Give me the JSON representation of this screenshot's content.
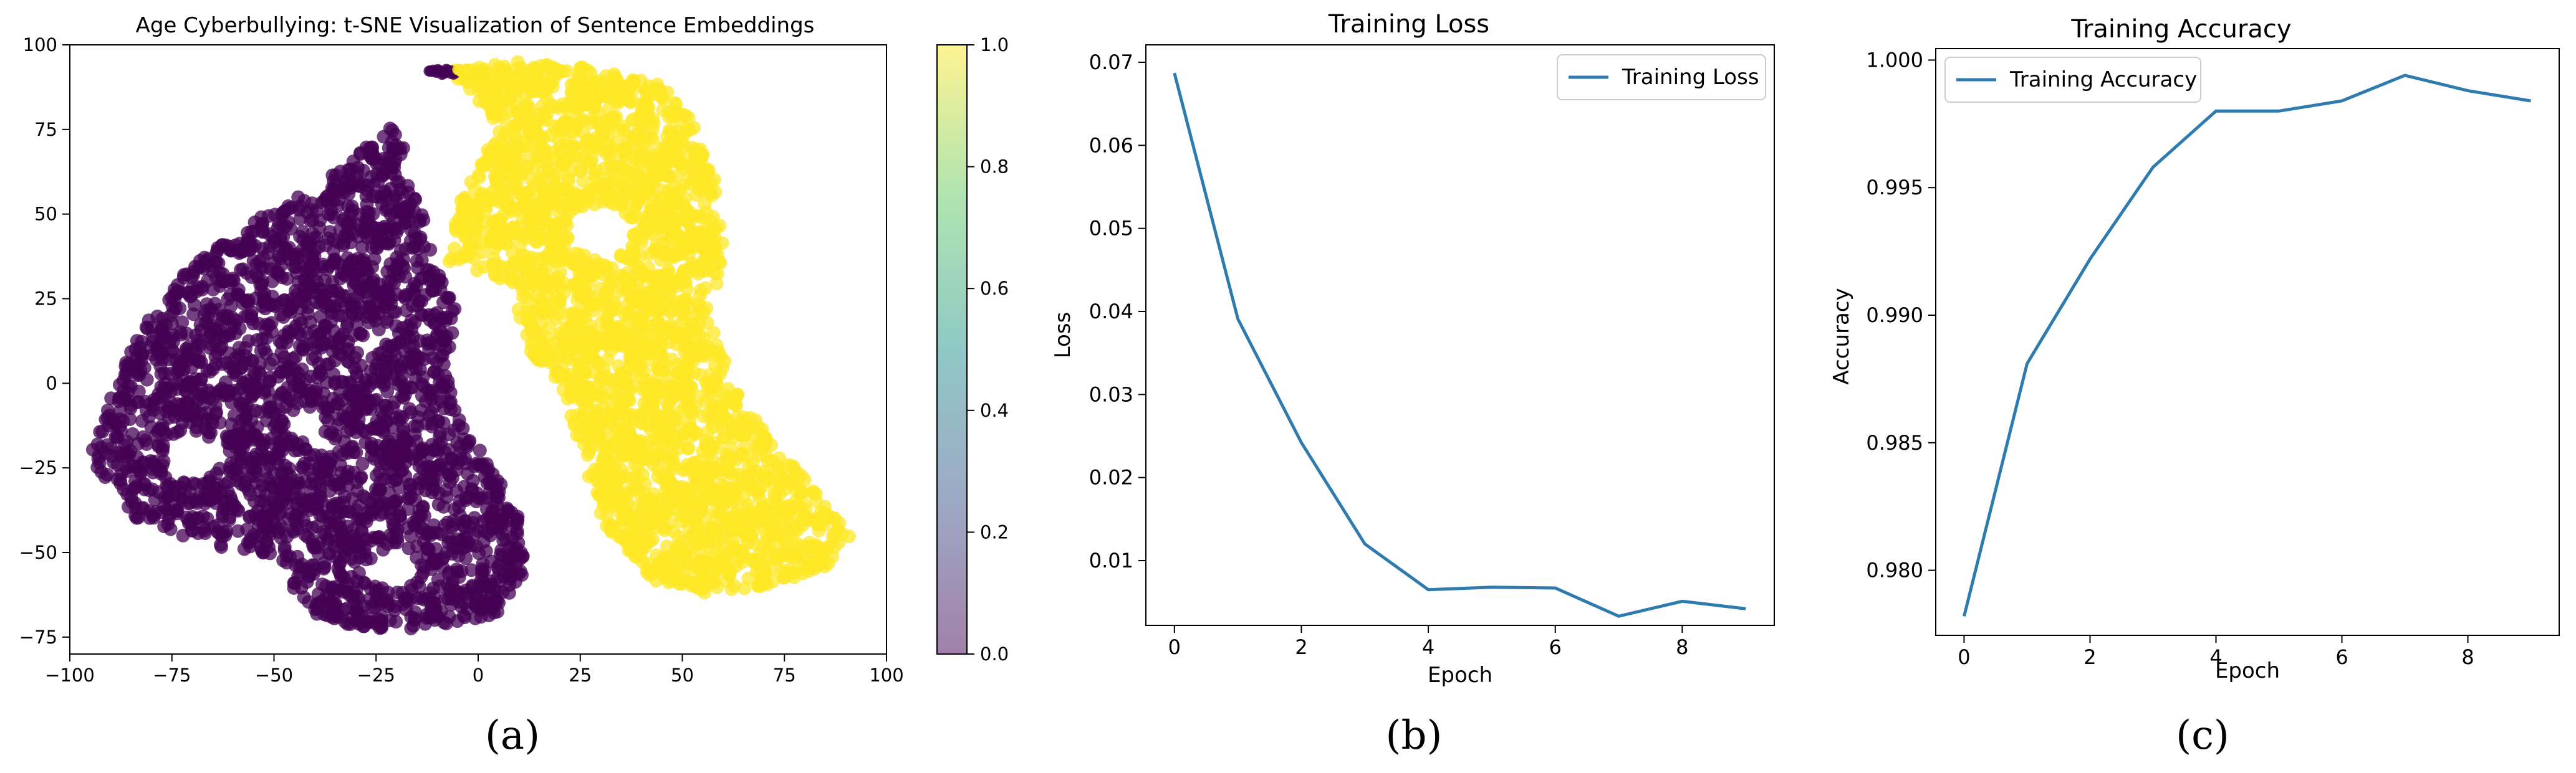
{
  "panels": {
    "a": "(a)",
    "b": "(b)",
    "c": "(c)"
  },
  "colors": {
    "line": "#2e7bb0",
    "purple": "#440154",
    "yellow": "#fde725"
  },
  "chart_data": [
    {
      "type": "scatter",
      "title": "Age Cyberbullying: t-SNE Visualization of Sentence Embeddings",
      "xlim": [
        -100,
        100
      ],
      "ylim": [
        -80,
        100
      ],
      "xticks": [
        -100,
        -75,
        -50,
        -25,
        0,
        25,
        50,
        75,
        100
      ],
      "yticks": [
        -75,
        -50,
        -25,
        0,
        25,
        50,
        75,
        100
      ],
      "colorbar": {
        "min": 0.0,
        "max": 1.0,
        "ticks": [
          "0.0",
          "0.2",
          "0.4",
          "0.6",
          "0.8",
          "1.0"
        ],
        "colormap": "viridis"
      },
      "clusters": [
        {
          "label_value": 0,
          "color": "#440154",
          "x_range": [
            -95,
            12
          ],
          "y_range": [
            -74,
            77
          ]
        },
        {
          "label_value": 1,
          "color": "#fde725",
          "x_range": [
            -8,
            91
          ],
          "y_range": [
            -62,
            95
          ]
        }
      ]
    },
    {
      "type": "line",
      "title": "Training Loss",
      "xlabel": "Epoch",
      "ylabel": "Loss",
      "xticks": [
        0,
        2,
        4,
        6,
        8
      ],
      "yticks": [
        0.01,
        0.02,
        0.03,
        0.04,
        0.05,
        0.06,
        0.07
      ],
      "xlim": [
        -0.45,
        9.45
      ],
      "ylim": [
        0.0022,
        0.0721
      ],
      "legend": "top-right",
      "series": [
        {
          "name": "Training Loss",
          "x": [
            0,
            1,
            2,
            3,
            4,
            5,
            6,
            7,
            8,
            9
          ],
          "values": [
            0.0687,
            0.0391,
            0.0242,
            0.012,
            0.0065,
            0.0068,
            0.0067,
            0.0033,
            0.0051,
            0.0042
          ]
        }
      ]
    },
    {
      "type": "line",
      "title": "Training Accuracy",
      "xlabel": "Epoch",
      "ylabel": "Accuracy",
      "xticks": [
        0,
        2,
        4,
        6,
        8
      ],
      "yticks": [
        "0.980",
        "0.985",
        "0.990",
        "0.995",
        "1.000"
      ],
      "xlim": [
        -0.45,
        9.45
      ],
      "ylim": [
        0.97745,
        1.00045
      ],
      "legend": "top-left",
      "series": [
        {
          "name": "Training Accuracy",
          "x": [
            0,
            1,
            2,
            3,
            4,
            5,
            6,
            7,
            8,
            9
          ],
          "values": [
            0.9782,
            0.9881,
            0.9922,
            0.9958,
            0.998,
            0.998,
            0.9984,
            0.9994,
            0.9988,
            0.9984
          ]
        }
      ]
    }
  ]
}
